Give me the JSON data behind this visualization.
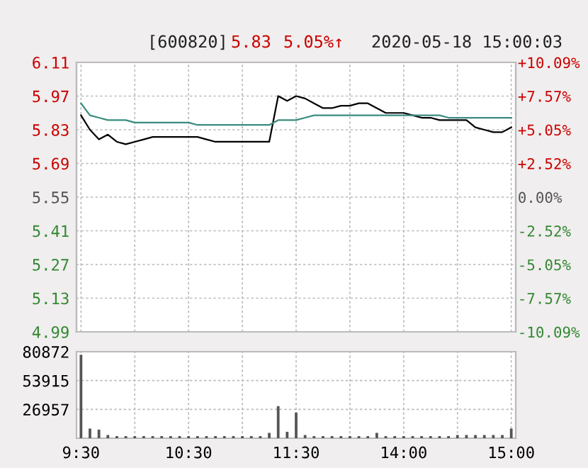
{
  "chart_data": [
    {
      "type": "line",
      "annotations": [
        "[600820]",
        "5.83",
        "5.05%↑",
        "2020-05-18 15:00:03"
      ],
      "grid": true,
      "tick_labels": "y",
      "categories": [
        null,
        null,
        null,
        null,
        null,
        null,
        null,
        null,
        null,
        null,
        null,
        null,
        null,
        null,
        null,
        null,
        null,
        null,
        null,
        null,
        null,
        null,
        null,
        null,
        null,
        null,
        null,
        null,
        null,
        null,
        null,
        null,
        null,
        null,
        null,
        null,
        null,
        null,
        null,
        null,
        null,
        null,
        null,
        null,
        null,
        null,
        null,
        null,
        null
      ],
      "ylim": [
        4.99,
        6.11
      ],
      "yticks": [
        4.99,
        5.13,
        5.27,
        5.41,
        5.55,
        5.69,
        5.83,
        5.97,
        6.11
      ],
      "y2lim": [
        -10.09,
        10.09
      ],
      "y2ticks": [
        {
          "value": -10.09,
          "label": "-10.09%"
        },
        {
          "value": -7.57,
          "label": "-7.57%"
        },
        {
          "value": -5.05,
          "label": "-5.05%"
        },
        {
          "value": -2.52,
          "label": "-2.52%"
        },
        {
          "value": 0,
          "label": "0.00%"
        },
        {
          "value": 2.52,
          "label": "+2.52%"
        },
        {
          "value": 5.05,
          "label": "+5.05%"
        },
        {
          "value": 7.57,
          "label": "+7.57%"
        },
        {
          "value": 10.09,
          "label": "+10.09%"
        }
      ],
      "series": [
        {
          "color": "#000000",
          "values": [
            5.89,
            5.83,
            5.79,
            5.81,
            5.78,
            5.77,
            5.78,
            5.79,
            5.8,
            5.8,
            5.8,
            5.8,
            5.8,
            5.8,
            5.79,
            5.78,
            5.78,
            5.78,
            5.78,
            5.78,
            5.78,
            5.78,
            5.97,
            5.95,
            5.97,
            5.96,
            5.94,
            5.92,
            5.92,
            5.93,
            5.93,
            5.94,
            5.94,
            5.92,
            5.9,
            5.9,
            5.9,
            5.89,
            5.88,
            5.88,
            5.87,
            5.87,
            5.87,
            5.87,
            5.84,
            5.83,
            5.82,
            5.82,
            5.84
          ]
        },
        {
          "color": "#3a8c80",
          "values": [
            5.94,
            5.89,
            5.88,
            5.87,
            5.87,
            5.87,
            5.86,
            5.86,
            5.86,
            5.86,
            5.86,
            5.86,
            5.86,
            5.85,
            5.85,
            5.85,
            5.85,
            5.85,
            5.85,
            5.85,
            5.85,
            5.85,
            5.87,
            5.87,
            5.87,
            5.88,
            5.89,
            5.89,
            5.89,
            5.89,
            5.89,
            5.89,
            5.89,
            5.89,
            5.89,
            5.89,
            5.89,
            5.89,
            5.89,
            5.89,
            5.89,
            5.88,
            5.88,
            5.88,
            5.88,
            5.88,
            5.88,
            5.88,
            5.88
          ]
        }
      ]
    },
    {
      "type": "bar",
      "grid": true,
      "categories": [
        "9:30",
        null,
        null,
        null,
        null,
        null,
        null,
        null,
        null,
        null,
        null,
        null,
        "10:30",
        null,
        null,
        null,
        null,
        null,
        null,
        null,
        null,
        null,
        null,
        null,
        "11:30",
        null,
        null,
        null,
        null,
        null,
        null,
        null,
        null,
        null,
        null,
        null,
        "14:00",
        null,
        null,
        null,
        null,
        null,
        null,
        null,
        null,
        null,
        null,
        null,
        "15:00"
      ],
      "ylim": [
        0,
        80872
      ],
      "yticks": [
        26957,
        53915,
        80872
      ],
      "series": [
        {
          "color": "#555555",
          "values": [
            78000,
            9000,
            8000,
            3000,
            2000,
            2000,
            2000,
            2000,
            2000,
            2000,
            2000,
            2000,
            2000,
            2000,
            2000,
            2000,
            2000,
            2000,
            2000,
            2000,
            2000,
            5000,
            30000,
            6000,
            24000,
            3000,
            2000,
            2000,
            2000,
            2000,
            2000,
            2000,
            2000,
            5000,
            2000,
            2000,
            2000,
            2000,
            2000,
            2000,
            2000,
            2000,
            3000,
            3000,
            3000,
            3000,
            3000,
            3000,
            9000
          ]
        }
      ]
    }
  ]
}
